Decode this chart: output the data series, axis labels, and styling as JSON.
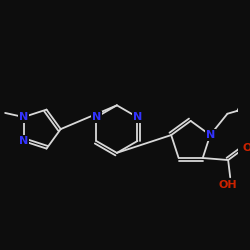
{
  "background_color": "#0d0d0d",
  "bond_color": "#d8d8d8",
  "N_color": "#3333ff",
  "O_color": "#cc2200",
  "figsize": [
    2.5,
    2.5
  ],
  "dpi": 100,
  "xlim": [
    -2.8,
    3.0
  ],
  "ylim": [
    -2.2,
    2.6
  ]
}
